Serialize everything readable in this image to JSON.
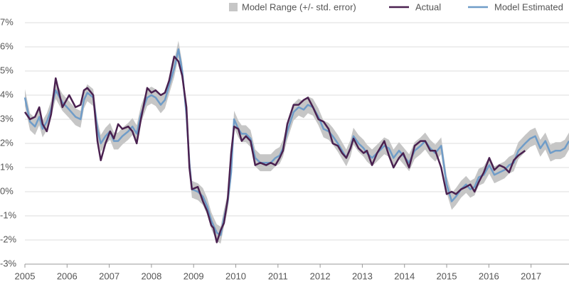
{
  "chart_data": {
    "type": "line",
    "x": [
      2005.0,
      2005.12,
      2005.24,
      2005.34,
      2005.42,
      2005.52,
      2005.62,
      2005.73,
      2005.89,
      2006.05,
      2006.2,
      2006.32,
      2006.4,
      2006.48,
      2006.62,
      2006.72,
      2006.8,
      2006.91,
      2007.02,
      2007.11,
      2007.21,
      2007.31,
      2007.45,
      2007.55,
      2007.65,
      2007.75,
      2007.9,
      2008.0,
      2008.1,
      2008.22,
      2008.32,
      2008.42,
      2008.54,
      2008.64,
      2008.73,
      2008.83,
      2008.9,
      2008.96,
      2009.1,
      2009.22,
      2009.32,
      2009.42,
      2009.47,
      2009.55,
      2009.64,
      2009.72,
      2009.81,
      2009.89,
      2009.96,
      2010.06,
      2010.14,
      2010.24,
      2010.35,
      2010.46,
      2010.58,
      2010.72,
      2010.83,
      2010.94,
      2011.04,
      2011.12,
      2011.22,
      2011.37,
      2011.49,
      2011.61,
      2011.71,
      2011.83,
      2011.96,
      2012.08,
      2012.2,
      2012.3,
      2012.42,
      2012.52,
      2012.62,
      2012.72,
      2012.79,
      2012.91,
      2013.03,
      2013.11,
      2013.23,
      2013.35,
      2013.52,
      2013.63,
      2013.74,
      2013.87,
      2013.97,
      2014.11,
      2014.24,
      2014.38,
      2014.49,
      2014.61,
      2014.73,
      2014.87,
      2015.0,
      2015.12,
      2015.22,
      2015.34,
      2015.46,
      2015.56,
      2015.66,
      2015.76,
      2015.88,
      2016.01,
      2016.13,
      2016.25,
      2016.37,
      2016.48,
      2016.59,
      2016.7,
      2016.86,
      2016.98,
      2017.1,
      2017.22,
      2017.34,
      2017.46,
      2017.58,
      2017.7,
      2017.8,
      2017.9
    ],
    "series": [
      {
        "name": "Model Range (+/- std. error)",
        "color": "#c6c6c6",
        "error": 0.35
      },
      {
        "name": "Actual",
        "color": "#4a2150",
        "values": [
          3.3,
          3.0,
          3.1,
          3.5,
          2.8,
          2.5,
          3.2,
          4.7,
          3.5,
          4.0,
          3.5,
          3.6,
          4.2,
          4.3,
          4.0,
          2.1,
          1.3,
          2.0,
          2.5,
          2.2,
          2.8,
          2.6,
          2.7,
          2.5,
          2.0,
          3.0,
          4.3,
          4.1,
          4.2,
          4.0,
          4.1,
          4.6,
          5.6,
          5.4,
          4.8,
          3.5,
          1.0,
          0.1,
          0.2,
          -0.4,
          -0.8,
          -1.4,
          -1.5,
          -2.1,
          -1.6,
          -1.3,
          -0.3,
          1.6,
          2.7,
          2.6,
          2.1,
          2.3,
          2.1,
          1.1,
          1.2,
          1.1,
          1.2,
          1.1,
          1.4,
          1.7,
          2.8,
          3.6,
          3.6,
          3.8,
          3.9,
          3.5,
          3.0,
          2.9,
          2.6,
          2.0,
          1.9,
          1.6,
          1.4,
          1.8,
          2.2,
          1.8,
          1.6,
          1.7,
          1.1,
          1.6,
          2.1,
          1.5,
          1.0,
          1.4,
          1.6,
          1.0,
          1.9,
          2.1,
          2.1,
          1.7,
          1.7,
          1.0,
          -0.1,
          0.0,
          -0.1,
          0.1,
          0.2,
          0.3,
          0.0,
          0.4,
          0.8,
          1.4,
          0.9,
          1.1,
          1.0,
          0.8,
          1.3,
          1.5,
          1.7,
          null,
          null,
          null,
          null,
          null,
          null,
          null,
          null,
          null
        ]
      },
      {
        "name": "Model Estimated",
        "color": "#6f9cc8",
        "values": [
          3.9,
          2.9,
          2.7,
          3.1,
          2.6,
          2.9,
          3.4,
          4.2,
          3.7,
          3.4,
          3.1,
          3.0,
          3.8,
          4.1,
          3.9,
          2.6,
          2.0,
          2.3,
          2.5,
          2.1,
          2.1,
          2.3,
          2.5,
          2.7,
          2.4,
          3.2,
          3.9,
          4.0,
          3.9,
          3.6,
          3.8,
          4.4,
          5.1,
          5.9,
          5.0,
          3.2,
          1.2,
          0.1,
          0.0,
          -0.2,
          -0.6,
          -1.2,
          -1.4,
          -1.7,
          -1.8,
          -1.1,
          -0.4,
          0.8,
          3.0,
          2.6,
          2.4,
          2.4,
          2.2,
          1.4,
          1.2,
          1.2,
          1.2,
          1.4,
          1.5,
          1.8,
          2.5,
          3.3,
          3.5,
          3.4,
          3.6,
          3.5,
          3.1,
          2.6,
          2.5,
          2.3,
          2.0,
          1.7,
          1.4,
          1.8,
          2.3,
          2.0,
          1.8,
          1.6,
          1.4,
          1.6,
          1.9,
          1.8,
          1.4,
          1.7,
          1.5,
          1.2,
          1.7,
          1.9,
          2.1,
          1.8,
          1.6,
          1.9,
          0.3,
          -0.4,
          -0.2,
          0.1,
          0.3,
          0.1,
          0.2,
          0.6,
          0.7,
          1.1,
          0.7,
          0.8,
          0.9,
          1.1,
          1.2,
          1.7,
          2.0,
          2.2,
          2.3,
          1.8,
          2.1,
          1.6,
          1.7,
          1.7,
          1.8,
          2.1
        ]
      }
    ],
    "xlim": [
      2005,
      2017.9
    ],
    "xticks": [
      2005,
      2006,
      2007,
      2008,
      2009,
      2010,
      2011,
      2012,
      2013,
      2014,
      2015,
      2016,
      2017
    ],
    "ylim": [
      -3,
      7
    ],
    "yticks": [
      {
        "value": -3,
        "label": "-3%"
      },
      {
        "value": -2,
        "label": "-2%"
      },
      {
        "value": -1,
        "label": "-1%"
      },
      {
        "value": 0,
        "label": "0%"
      },
      {
        "value": 1,
        "label": "1%"
      },
      {
        "value": 2,
        "label": "2%"
      },
      {
        "value": 3,
        "label": "3%"
      },
      {
        "value": 4,
        "label": "4%"
      },
      {
        "value": 5,
        "label": "5%"
      },
      {
        "value": 6,
        "label": "6%"
      },
      {
        "value": 7,
        "label": "7%"
      }
    ],
    "grid": true
  }
}
